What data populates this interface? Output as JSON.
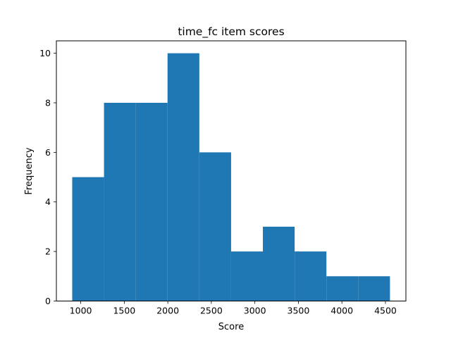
{
  "chart_data": {
    "type": "bar",
    "title": "time_fc item scores",
    "xlabel": "Score",
    "ylabel": "Frequency",
    "bin_edges": [
      902,
      1267,
      1632,
      1997,
      2362,
      2727,
      3092,
      3457,
      3822,
      4187,
      4552
    ],
    "values": [
      5,
      8,
      8,
      10,
      6,
      2,
      3,
      2,
      1,
      1
    ],
    "xlim": [
      720,
      4735
    ],
    "ylim": [
      0,
      10.5
    ],
    "xticks": [
      1000,
      1500,
      2000,
      2500,
      3000,
      3500,
      4000,
      4500
    ],
    "yticks": [
      0,
      2,
      4,
      6,
      8,
      10
    ],
    "bar_color": "#1f77b4",
    "grid": false,
    "legend": "none"
  }
}
